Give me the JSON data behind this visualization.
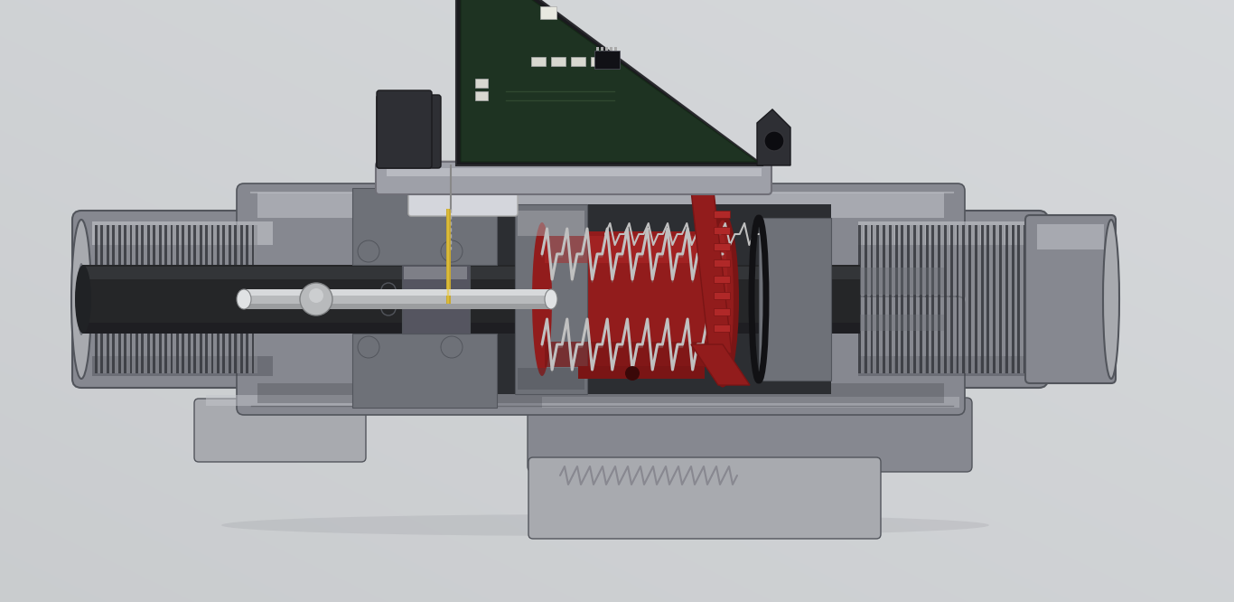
{
  "background_color": "#d0d2d4",
  "fig_width": 13.66,
  "fig_height": 6.66,
  "dpi": 100,
  "body_color": "#868890",
  "body_dark": "#52555c",
  "body_mid": "#6e7178",
  "body_light": "#a8aaaf",
  "body_highlight": "#c4c6cc",
  "body_shadow": "#3e4047",
  "red_dark": "#7a1515",
  "red_mid": "#921c1c",
  "red_light": "#b02828",
  "spring_color": "#c0c0c0",
  "spring_dark": "#888888",
  "thread_dark": "#3a3c42",
  "thread_mid": "#58595f",
  "thread_light": "#888a90",
  "shaft_color": "#b8babc",
  "shaft_highlight": "#e0e2e4",
  "shaft_dark": "#808284",
  "black_part": "#1a1a1e",
  "dark_gray": "#2e2f34",
  "pcb_dark": "#1e1e22",
  "bracket_dark": "#222226",
  "sensor_gray": "#555560",
  "inner_dark": "#2a2b30",
  "inner_mid": "#3e4045",
  "cavity_color": "#252628",
  "oring_color": "#111114",
  "gold_color": "#c8a830",
  "white_comp": "#d8d8d0",
  "light_comp": "#e8e8e0",
  "mount_plate": "#9ea0a8",
  "white_plate": "#d4d6dc"
}
